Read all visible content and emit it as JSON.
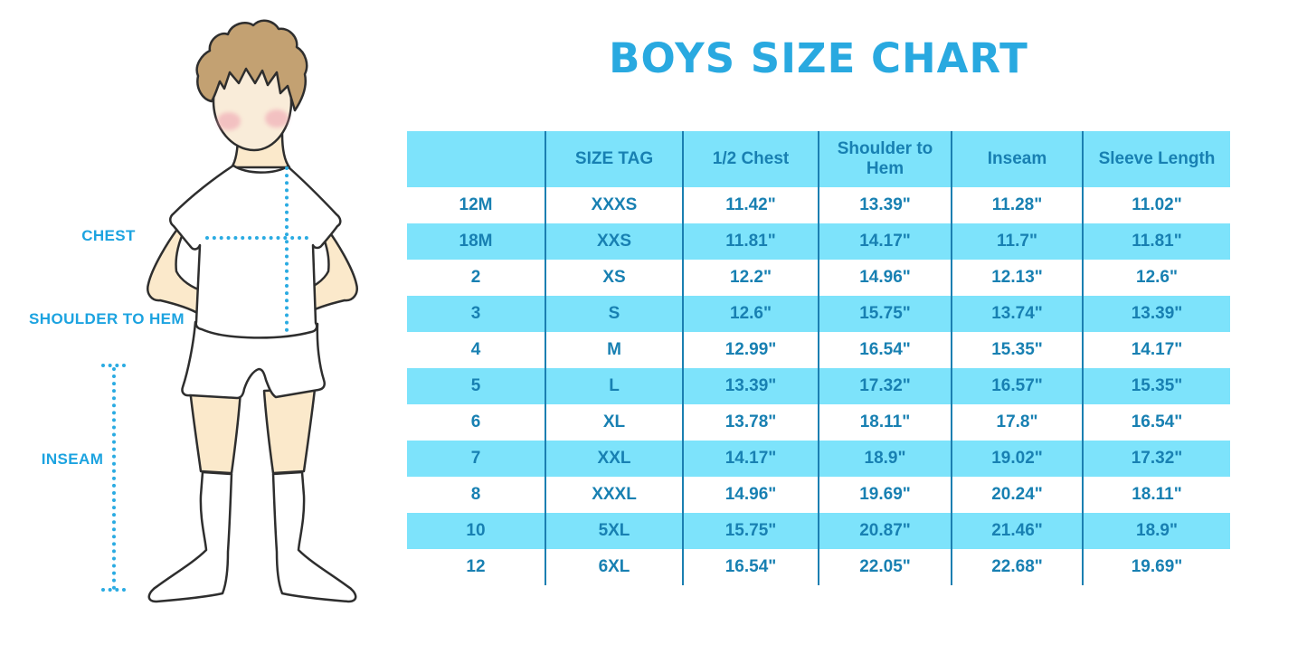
{
  "title": "BOYS SIZE CHART",
  "figure": {
    "description": "cartoon boy in white t-shirt, shorts and socks with measurement guides",
    "labels": {
      "chest": "CHEST",
      "shoulder_to_hem": "SHOULDER TO HEM",
      "inseam": "INSEAM"
    }
  },
  "colors": {
    "title_blue": "#29a9e0",
    "label_blue": "#1ca3e0",
    "dotted_line_blue": "#2aabe2",
    "table_fill_light_blue": "#7de3fb",
    "table_text_blue": "#1880b2",
    "table_border_blue": "#1b7fb1",
    "skin": "#fbe9cb",
    "hair": "#c3a172",
    "cheek": "#ee9eae"
  },
  "chart_data": {
    "type": "table",
    "title": "BOYS SIZE CHART",
    "columns": [
      "",
      "SIZE TAG",
      "1/2 Chest",
      "Shoulder to Hem",
      "Inseam",
      "Sleeve Length"
    ],
    "rows": [
      [
        "12M",
        "XXXS",
        "11.42\"",
        "13.39\"",
        "11.28\"",
        "11.02\""
      ],
      [
        "18M",
        "XXS",
        "11.81\"",
        "14.17\"",
        "11.7\"",
        "11.81\""
      ],
      [
        "2",
        "XS",
        "12.2\"",
        "14.96\"",
        "12.13\"",
        "12.6\""
      ],
      [
        "3",
        "S",
        "12.6\"",
        "15.75\"",
        "13.74\"",
        "13.39\""
      ],
      [
        "4",
        "M",
        "12.99\"",
        "16.54\"",
        "15.35\"",
        "14.17\""
      ],
      [
        "5",
        "L",
        "13.39\"",
        "17.32\"",
        "16.57\"",
        "15.35\""
      ],
      [
        "6",
        "XL",
        "13.78\"",
        "18.11\"",
        "17.8\"",
        "16.54\""
      ],
      [
        "7",
        "XXL",
        "14.17\"",
        "18.9\"",
        "19.02\"",
        "17.32\""
      ],
      [
        "8",
        "XXXL",
        "14.96\"",
        "19.69\"",
        "20.24\"",
        "18.11\""
      ],
      [
        "10",
        "5XL",
        "15.75\"",
        "20.87\"",
        "21.46\"",
        "18.9\""
      ],
      [
        "12",
        "6XL",
        "16.54\"",
        "22.05\"",
        "22.68\"",
        "19.69\""
      ]
    ],
    "row_striping": "header and even data rows light blue, odd data rows white",
    "units": "inches"
  }
}
